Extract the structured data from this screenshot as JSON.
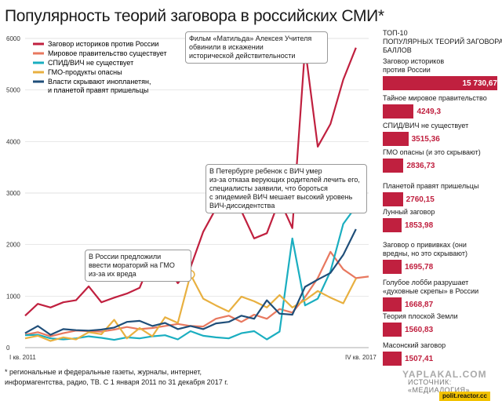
{
  "title": "Популярность теорий заговора в российских СМИ*",
  "chart_data": {
    "type": "line",
    "x_start_label": "I кв. 2011",
    "x_end_label": "IV кв. 2017",
    "quarters": [
      "2011 Q1",
      "2011 Q2",
      "2011 Q3",
      "2011 Q4",
      "2012 Q1",
      "2012 Q2",
      "2012 Q3",
      "2012 Q4",
      "2013 Q1",
      "2013 Q2",
      "2013 Q3",
      "2013 Q4",
      "2014 Q1",
      "2014 Q2",
      "2014 Q3",
      "2014 Q4",
      "2015 Q1",
      "2015 Q2",
      "2015 Q3",
      "2015 Q4",
      "2016 Q1",
      "2016 Q2",
      "2016 Q3",
      "2016 Q4",
      "2017 Q1",
      "2017 Q2",
      "2017 Q3",
      "2017 Q4"
    ],
    "ylim": [
      0,
      6000
    ],
    "yticks": [
      0,
      1000,
      2000,
      3000,
      4000,
      5000,
      6000
    ],
    "series": [
      {
        "name": "Заговор историков против России",
        "color": "#c0203f",
        "values": [
          620,
          850,
          780,
          880,
          920,
          1190,
          880,
          970,
          1050,
          1160,
          1750,
          1640,
          1250,
          1560,
          2250,
          2700,
          3050,
          2650,
          2120,
          2220,
          2870,
          2320,
          5820,
          3900,
          4340,
          5200,
          5820,
          null
        ]
      },
      {
        "name": "Мировое правительство существует",
        "color": "#e8785f",
        "values": [
          250,
          300,
          220,
          280,
          330,
          320,
          310,
          350,
          400,
          360,
          380,
          420,
          460,
          420,
          410,
          560,
          620,
          500,
          640,
          560,
          750,
          680,
          980,
          1350,
          1860,
          1520,
          1350,
          1380
        ]
      },
      {
        "name": "СПИД/ВИЧ не существует",
        "color": "#1aaec0",
        "values": [
          240,
          250,
          180,
          160,
          180,
          220,
          190,
          150,
          200,
          180,
          220,
          240,
          160,
          320,
          230,
          200,
          180,
          280,
          320,
          160,
          310,
          2120,
          820,
          950,
          1480,
          2400,
          2740,
          null
        ]
      },
      {
        "name": "ГМО-продукты опасны",
        "color": "#e8b040",
        "values": [
          180,
          230,
          130,
          200,
          160,
          300,
          260,
          540,
          180,
          380,
          220,
          590,
          480,
          1420,
          950,
          820,
          700,
          990,
          900,
          780,
          1020,
          780,
          920,
          1100,
          970,
          860,
          1340,
          null
        ]
      },
      {
        "name": "Власти скрывают инопланетян, и планетой правят пришельцы",
        "legend_lines": [
          "Власти скрывают инопланетян,",
          "и планетой правят пришельцы"
        ],
        "color": "#1f4e79",
        "values": [
          280,
          420,
          250,
          360,
          340,
          330,
          350,
          390,
          500,
          520,
          420,
          480,
          360,
          420,
          360,
          470,
          500,
          620,
          560,
          920,
          660,
          640,
          1180,
          1320,
          1450,
          1800,
          2300,
          null
        ]
      }
    ]
  },
  "annotations": {
    "matilda": [
      "Фильм «Матильда» Алексея Учителя",
      "обвинили в искажении",
      "исторической действительности"
    ],
    "hiv": [
      "В Петербурге ребенок с ВИЧ умер",
      "из-за отказа верующих родителей лечить его,",
      "специалисты заявили, что бороться",
      "с эпидемией ВИЧ мешает высокий уровень",
      "ВИЧ-диссидентства"
    ],
    "gmo": [
      "В России предложили",
      "ввести мораторий на ГМО",
      "из-за их вреда"
    ]
  },
  "ranking": {
    "heading_lines": [
      "ТОП-10",
      "популярных теорий заговора,",
      "баллов"
    ],
    "items": [
      {
        "label_lines": [
          "Заговор историков",
          "против России"
        ],
        "value": 15730.67,
        "value_text": "15 730,67"
      },
      {
        "label_lines": [
          "Тайное мировое правительство"
        ],
        "value": 4249.3,
        "value_text": "4249,3"
      },
      {
        "label_lines": [
          "СПИД/ВИЧ не существует"
        ],
        "value": 3515.36,
        "value_text": "3515,36"
      },
      {
        "label_lines": [
          "ГМО опасны (и это скрывают)"
        ],
        "value": 2836.73,
        "value_text": "2836,73"
      },
      {
        "label_lines": [
          "Планетой правят пришельцы"
        ],
        "value": 2760.15,
        "value_text": "2760,15"
      },
      {
        "label_lines": [
          "Лунный заговор"
        ],
        "value": 1853.98,
        "value_text": "1853,98"
      },
      {
        "label_lines": [
          "Заговор о прививках (они",
          "вредны, но это скрывают)"
        ],
        "value": 1695.78,
        "value_text": "1695,78"
      },
      {
        "label_lines": [
          "Голубое лобби разрушает",
          "«духовные скрепы» в России"
        ],
        "value": 1668.87,
        "value_text": "1668,87"
      },
      {
        "label_lines": [
          "Теория плоской Земли"
        ],
        "value": 1560.83,
        "value_text": "1560,83"
      },
      {
        "label_lines": [
          "Масонский заговор"
        ],
        "value": 1507.41,
        "value_text": "1507,41"
      }
    ]
  },
  "footnote_lines": [
    "* региональные и федеральные газеты, журналы, интернет,",
    "информагентства, радио, ТВ. С 1 января 2011 по 31 декабря 2017 г."
  ],
  "source": "ИСТОЧНИК: «МЕДИАЛОГИЯ»",
  "watermark": "YAPLAKAL.COM",
  "site_badge": "polit.reactor.cc"
}
